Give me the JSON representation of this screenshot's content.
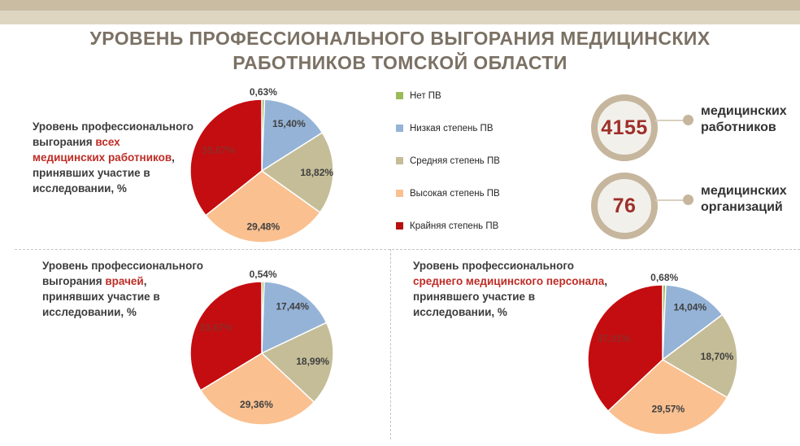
{
  "title": {
    "line1": "УРОВЕНЬ ПРОФЕССИОНАЛЬНОГО ВЫГОРАНИЯ МЕДИЦИНСКИХ",
    "line2": "РАБОТНИКОВ ТОМСКОЙ ОБЛАСТИ"
  },
  "legend": {
    "items": [
      {
        "label": "Нет ПВ",
        "color": "#9BBB59"
      },
      {
        "label": "Низкая степень ПВ",
        "color": "#95B3D7"
      },
      {
        "label": "Средняя степень ПВ",
        "color": "#C4BD97"
      },
      {
        "label": "Высокая степень ПВ",
        "color": "#FAC090"
      },
      {
        "label": "Крайняя степень ПВ",
        "color": "#B8100F"
      }
    ]
  },
  "stats": [
    {
      "value": "4155",
      "label_line1": "медицинских",
      "label_line2": "работников"
    },
    {
      "value": "76",
      "label_line1": "медицинских",
      "label_line2": "организаций"
    }
  ],
  "chart_data": [
    {
      "type": "pie",
      "title": "Уровень профессионального выгорания всех медицинских работников, принявших участие в исследовании, %",
      "caption_parts": {
        "pre": "Уровень профессионального\nвыгорания ",
        "highlight": "всех\nмедицинских работников",
        "post": ",\nпринявших участие в\nисследовании, %"
      },
      "categories": [
        "Нет ПВ",
        "Низкая степень ПВ",
        "Средняя степень ПВ",
        "Высокая степень ПВ",
        "Крайняя степень ПВ"
      ],
      "values": [
        0.63,
        15.4,
        18.82,
        29.48,
        35.67
      ],
      "labels": [
        "0,63%",
        "15,40%",
        "18,82%",
        "29,48%",
        "35,67%"
      ],
      "colors": [
        "#9BBB59",
        "#95B3D7",
        "#C4BD97",
        "#FAC090",
        "#C40D10"
      ],
      "label_colors": [
        "#404040",
        "#404040",
        "#404040",
        "#404040",
        "#8F2C28"
      ],
      "legend_position": "right"
    },
    {
      "type": "pie",
      "title": "Уровень профессионального выгорания врачей, принявших участие в исследовании, %",
      "caption_parts": {
        "pre": "Уровень профессионального\nвыгорания ",
        "highlight": "врачей",
        "post": ",\nпринявших участие в\nисследовании, %"
      },
      "categories": [
        "Нет ПВ",
        "Низкая степень ПВ",
        "Средняя степень ПВ",
        "Высокая степень ПВ",
        "Крайняя степень ПВ"
      ],
      "values": [
        0.54,
        17.44,
        18.99,
        29.36,
        33.67
      ],
      "labels": [
        "0,54%",
        "17,44%",
        "18,99%",
        "29,36%",
        "33,67%"
      ],
      "colors": [
        "#9BBB59",
        "#95B3D7",
        "#C4BD97",
        "#FAC090",
        "#C40D10"
      ],
      "label_colors": [
        "#404040",
        "#404040",
        "#404040",
        "#404040",
        "#8F2C28"
      ],
      "legend_position": "shared"
    },
    {
      "type": "pie",
      "title": "Уровень профессионального среднего медицинского персонала, принявшего участие в исследовании, %",
      "caption_parts": {
        "pre": "Уровень профессионального\n",
        "highlight": "среднего медицинского персонала",
        "post": ",\nпринявшего участие в\nисследовании, %"
      },
      "categories": [
        "Нет ПВ",
        "Низкая степень ПВ",
        "Средняя степень ПВ",
        "Высокая степень ПВ",
        "Крайняя степень ПВ"
      ],
      "values": [
        0.68,
        14.04,
        18.7,
        29.57,
        37.01
      ],
      "labels": [
        "0,68%",
        "14,04%",
        "18,70%",
        "29,57%",
        "37,01%"
      ],
      "colors": [
        "#9BBB59",
        "#95B3D7",
        "#C4BD97",
        "#FAC090",
        "#C40D10"
      ],
      "label_colors": [
        "#404040",
        "#404040",
        "#404040",
        "#404040",
        "#8F2C28"
      ],
      "legend_position": "shared"
    }
  ]
}
